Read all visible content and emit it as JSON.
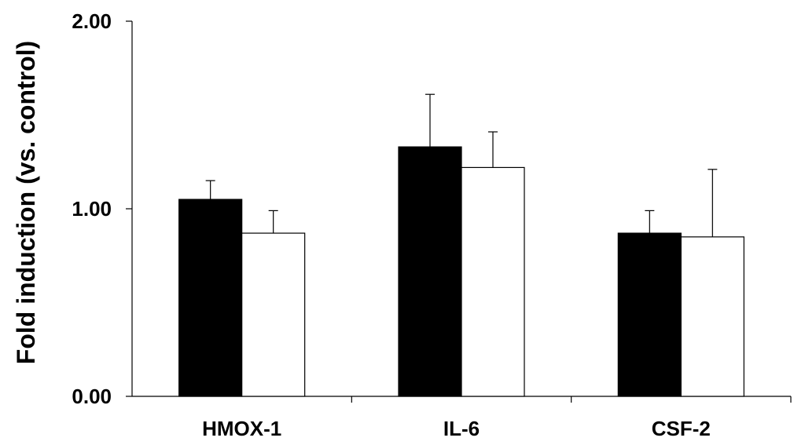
{
  "chart_data": {
    "type": "bar",
    "title": "",
    "xlabel": "",
    "ylabel": "Fold induction (vs. control)",
    "ylim": [
      0,
      2
    ],
    "y_ticks": [
      "0.00",
      "1.00",
      "2.00"
    ],
    "y_tick_values": [
      0,
      1,
      2
    ],
    "categories": [
      "HMOX-1",
      "IL-6",
      "CSF-2"
    ],
    "series": [
      {
        "color": "#000000",
        "values": [
          1.05,
          1.33,
          0.87
        ],
        "errors": [
          0.1,
          0.28,
          0.12
        ]
      },
      {
        "color": "#ffffff",
        "values": [
          0.87,
          1.22,
          0.85
        ],
        "errors": [
          0.12,
          0.19,
          0.36
        ]
      }
    ],
    "grid": false,
    "legend": "none"
  }
}
